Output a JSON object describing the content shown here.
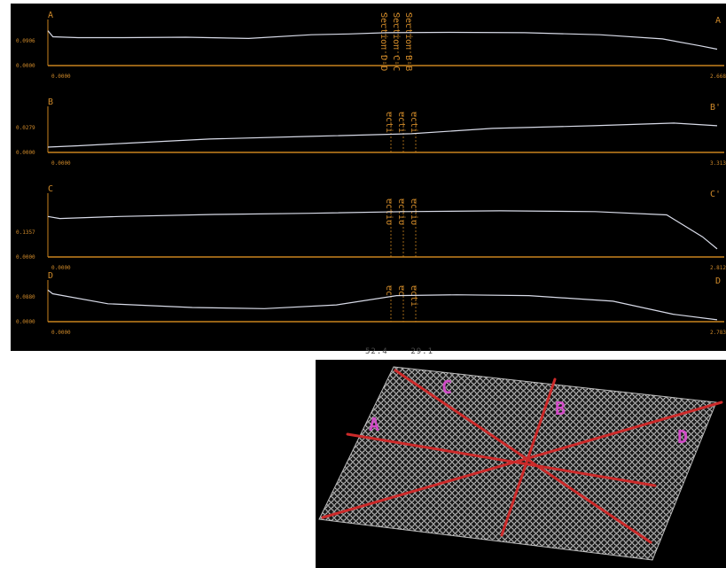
{
  "colors": {
    "background": "#000000",
    "axis": "#c8821e",
    "label": "#d08a2a",
    "trace": "#d8dbe8",
    "surface_lines": "#cc2a2a",
    "surface_labels": "#d24cc8"
  },
  "panels": [
    {
      "id": "A",
      "left_label": "A",
      "right_label": "A",
      "y_max_label": "0.0906",
      "y_min_label": "0.0000",
      "x_min_label": "0.0000",
      "x_max_label": "2.668",
      "sections": [
        "Section D-D",
        "Section C-C",
        "Section B-B"
      ]
    },
    {
      "id": "B",
      "left_label": "B",
      "right_label": "B'",
      "y_max_label": "0.0279",
      "y_min_label": "0.0000",
      "x_min_label": "0.0000",
      "x_max_label": "3.313",
      "sections": [
        "ecti",
        "ecti",
        "ecti"
      ]
    },
    {
      "id": "C",
      "left_label": "C",
      "right_label": "C'",
      "y_max_label": "0.1357",
      "y_min_label": "0.0000",
      "x_min_label": "0.0000",
      "x_max_label": "2.812",
      "sections": [
        "ectio",
        "ectio",
        "ectio"
      ]
    },
    {
      "id": "D",
      "left_label": "D",
      "right_label": "D",
      "y_max_label": "0.0880",
      "y_min_label": "0.0000",
      "x_min_label": "0.0000",
      "x_max_label": "2.783",
      "sections": [
        "ec",
        "ec",
        "ecti"
      ]
    }
  ],
  "bottom_readout": "52.4    29.1",
  "surface": {
    "labels": [
      "A",
      "B",
      "C",
      "D"
    ]
  },
  "chart_data": [
    {
      "type": "line",
      "title": "",
      "ylim": [
        0,
        0.0906
      ],
      "xlim": [
        0,
        2.668
      ],
      "series": [
        {
          "x": [
            0,
            0.02,
            0.12,
            0.3,
            0.55,
            0.8,
            1.05,
            1.2,
            1.35,
            1.6,
            1.9,
            2.2,
            2.45,
            2.6,
            2.668
          ],
          "y": [
            0.085,
            0.07,
            0.068,
            0.068,
            0.069,
            0.066,
            0.075,
            0.077,
            0.08,
            0.081,
            0.08,
            0.075,
            0.065,
            0.048,
            0.04
          ]
        }
      ]
    },
    {
      "type": "line",
      "title": "",
      "ylim": [
        0,
        0.0279
      ],
      "xlim": [
        0,
        3.313
      ],
      "series": [
        {
          "x": [
            0,
            0.15,
            0.4,
            0.8,
            1.3,
            1.8,
            2.2,
            2.7,
            3.1,
            3.313
          ],
          "y": [
            0.004,
            0.005,
            0.007,
            0.01,
            0.012,
            0.014,
            0.018,
            0.02,
            0.022,
            0.02
          ]
        }
      ]
    },
    {
      "type": "line",
      "title": "",
      "ylim": [
        0,
        0.1357
      ],
      "xlim": [
        0,
        2.812
      ],
      "series": [
        {
          "x": [
            0,
            0.05,
            0.3,
            0.7,
            1.1,
            1.5,
            1.9,
            2.3,
            2.6,
            2.75,
            2.812
          ],
          "y": [
            0.1,
            0.095,
            0.1,
            0.105,
            0.108,
            0.112,
            0.114,
            0.112,
            0.104,
            0.05,
            0.02
          ]
        }
      ]
    },
    {
      "type": "line",
      "title": "",
      "ylim": [
        0,
        0.088
      ],
      "xlim": [
        0,
        2.783
      ],
      "series": [
        {
          "x": [
            0,
            0.02,
            0.25,
            0.6,
            0.9,
            1.2,
            1.45,
            1.7,
            2.0,
            2.35,
            2.6,
            2.783
          ],
          "y": [
            0.085,
            0.075,
            0.048,
            0.038,
            0.035,
            0.045,
            0.07,
            0.072,
            0.07,
            0.055,
            0.02,
            0.005
          ]
        }
      ]
    }
  ]
}
